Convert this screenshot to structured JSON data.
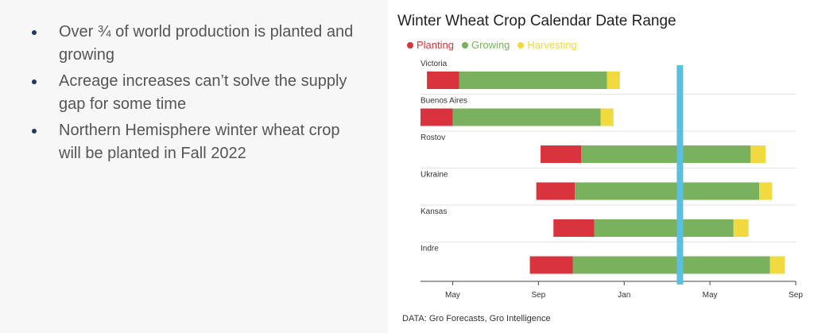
{
  "bullets": [
    "Over ¾ of world production is planted and growing",
    "Acreage increases can’t solve the supply gap for some time",
    "Northern Hemisphere winter wheat crop will be planted in Fall 2022"
  ],
  "chart_data": {
    "type": "bar",
    "subtype": "gantt",
    "title": "Winter Wheat Crop Calendar Date Range",
    "legend": [
      {
        "name": "Planting",
        "color": "#d9343d"
      },
      {
        "name": "Growing",
        "color": "#79b15f"
      },
      {
        "name": "Harvesting",
        "color": "#f1da3f"
      }
    ],
    "x_unit": "months since Jan (year 1)",
    "xlim": [
      2.5,
      20
    ],
    "xticks": [
      {
        "label": "May",
        "value": 4
      },
      {
        "label": "Sep",
        "value": 8
      },
      {
        "label": "Jan",
        "value": 12
      },
      {
        "label": "May",
        "value": 16
      },
      {
        "label": "Sep",
        "value": 20
      }
    ],
    "current_marker": {
      "value": 14.6,
      "color": "#5bbfe0"
    },
    "rows": [
      {
        "name": "Victoria",
        "planting": [
          2.8,
          4.3
        ],
        "growing": [
          4.3,
          11.2
        ],
        "harvesting": [
          11.2,
          11.8
        ]
      },
      {
        "name": "Buenos Aires",
        "planting": [
          2.5,
          4.0
        ],
        "growing": [
          4.0,
          10.9
        ],
        "harvesting": [
          10.9,
          11.5
        ]
      },
      {
        "name": "Rostov",
        "planting": [
          8.1,
          10.0
        ],
        "growing": [
          10.0,
          17.9
        ],
        "harvesting": [
          17.9,
          18.6
        ]
      },
      {
        "name": "Ukraine",
        "planting": [
          7.9,
          9.7
        ],
        "growing": [
          9.7,
          18.3
        ],
        "harvesting": [
          18.3,
          18.9
        ]
      },
      {
        "name": "Kansas",
        "planting": [
          8.7,
          10.6
        ],
        "growing": [
          10.6,
          17.1
        ],
        "harvesting": [
          17.1,
          17.8
        ]
      },
      {
        "name": "Indre",
        "planting": [
          7.6,
          9.6
        ],
        "growing": [
          9.6,
          18.8
        ],
        "harvesting": [
          18.8,
          19.5
        ]
      }
    ],
    "source": "DATA: Gro Forecasts, Gro Intelligence"
  }
}
